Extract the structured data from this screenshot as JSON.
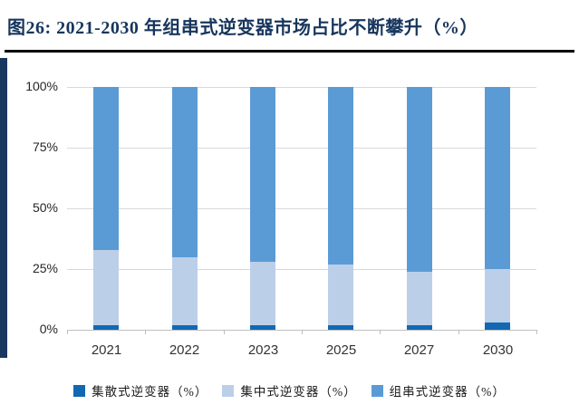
{
  "figure": {
    "title": "图26:  2021-2030 年组串式逆变器市场占比不断攀升（%）"
  },
  "chart_data": {
    "type": "bar",
    "stacked": true,
    "title": "2021-2030 年组串式逆变器市场占比不断攀升（%）",
    "categories": [
      "2021",
      "2022",
      "2023",
      "2025",
      "2027",
      "2030"
    ],
    "series": [
      {
        "name": "集散式逆变器（%）",
        "color": "#1268B3",
        "values": [
          2,
          2,
          2,
          2,
          2,
          3
        ]
      },
      {
        "name": "集中式逆变器（%）",
        "color": "#BCCFE8",
        "values": [
          31,
          28,
          26,
          25,
          22,
          22
        ]
      },
      {
        "name": "组串式逆变器（%）",
        "color": "#5B9BD5",
        "values": [
          67,
          70,
          72,
          73,
          76,
          75
        ]
      }
    ],
    "xlabel": "",
    "ylabel": "",
    "ylim": [
      0,
      100
    ],
    "ytick_values": [
      0,
      25,
      50,
      75,
      100
    ],
    "ytick_labels": [
      "0%",
      "25%",
      "50%",
      "75%",
      "100%"
    ],
    "grid": true,
    "legend_position": "bottom"
  },
  "colors": {
    "title_text": "#17365D",
    "accent_stripe": "#17375E",
    "gridline": "#D9D9D9",
    "axis_text": "#333333"
  }
}
